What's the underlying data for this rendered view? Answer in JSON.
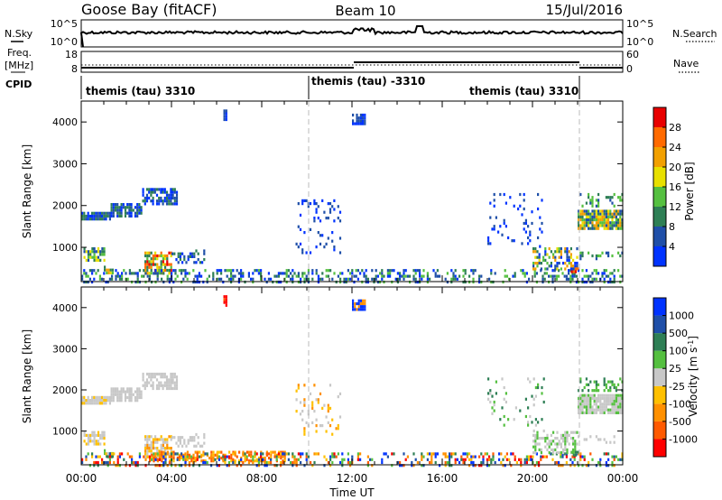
{
  "header": {
    "station": "Goose Bay (fitACF)",
    "beam": "Beam 10",
    "date": "15/Jul/2016"
  },
  "top_panel": {
    "left_label": "N.Sky",
    "right_label": "N.Search",
    "left_ticks": [
      "10^5",
      "10^0"
    ],
    "right_ticks": [
      "10^5",
      "10^0"
    ]
  },
  "freq_panel": {
    "left_label_1": "Freq.",
    "left_label_2": "[MHz]",
    "right_label": "Nave",
    "left_ticks": [
      "18",
      "8"
    ],
    "right_ticks": [
      "60",
      "0"
    ]
  },
  "cpid": {
    "label": "CPID",
    "segments": [
      {
        "text": "themis (tau) 3310",
        "start_hour": 0,
        "end_hour": 10
      },
      {
        "text": "themis (tau) -3310",
        "start_hour": 10,
        "end_hour": 22
      },
      {
        "text": "themis (tau) 3310",
        "start_hour": 22,
        "end_hour": 24
      }
    ]
  },
  "x_axis": {
    "label": "Time UT",
    "tick_labels": [
      "00:00",
      "04:00",
      "08:00",
      "12:00",
      "16:00",
      "20:00",
      "00:00"
    ],
    "range_hours": [
      0,
      24
    ],
    "tick_hours": [
      0,
      4,
      8,
      12,
      16,
      20,
      24
    ]
  },
  "power_panel": {
    "ylabel": "Slant Range [km]",
    "yticks": [
      "1000",
      "2000",
      "3000",
      "4000"
    ],
    "colorbar_label": "Power [dB]",
    "colorbar_ticks": [
      "4",
      "8",
      "12",
      "16",
      "20",
      "24",
      "28"
    ],
    "colors": [
      "#0033ff",
      "#1f4fa8",
      "#2e7f55",
      "#55c040",
      "#e8e000",
      "#f2a000",
      "#ff6a00",
      "#e80000"
    ]
  },
  "velocity_panel": {
    "ylabel": "Slant Range [km]",
    "yticks": [
      "1000",
      "2000",
      "3000",
      "4000"
    ],
    "colorbar_label": "Velocity [m s",
    "colorbar_sup": "-1",
    "colorbar_unit_end": "]",
    "colorbar_ticks": [
      "-1000",
      "-500",
      "-100",
      "-25",
      "25",
      "100",
      "500",
      "1000"
    ],
    "colors": [
      "#ff0000",
      "#ff5a00",
      "#ff9000",
      "#ffc000",
      "#c8c8c8",
      "#55c040",
      "#2e7f55",
      "#1f4fa8",
      "#0033ff"
    ]
  },
  "chart_data": [
    {
      "type": "heatmap",
      "title": "Power",
      "x_range_hours": [
        0,
        24
      ],
      "y_range_km": [
        180,
        4500
      ],
      "regions": [
        {
          "t": [
            0.0,
            1.3
          ],
          "r": [
            1650,
            1850
          ],
          "density": 0.85,
          "cls": [
            0,
            1,
            2
          ]
        },
        {
          "t": [
            1.3,
            2.7
          ],
          "r": [
            1760,
            2060
          ],
          "density": 0.8,
          "cls": [
            0,
            1,
            2
          ]
        },
        {
          "t": [
            2.7,
            4.2
          ],
          "r": [
            2050,
            2420
          ],
          "density": 0.7,
          "cls": [
            0,
            1,
            2
          ]
        },
        {
          "t": [
            0.1,
            1.0
          ],
          "r": [
            700,
            1000
          ],
          "density": 0.6,
          "cls": [
            1,
            2,
            3,
            4
          ]
        },
        {
          "t": [
            1.0,
            1.4
          ],
          "r": [
            380,
            560
          ],
          "density": 0.7,
          "cls": [
            2,
            3,
            4,
            5
          ]
        },
        {
          "t": [
            2.8,
            4.0
          ],
          "r": [
            350,
            900
          ],
          "density": 0.75,
          "cls": [
            2,
            3,
            4,
            5,
            6,
            7
          ]
        },
        {
          "t": [
            4.0,
            5.6
          ],
          "r": [
            640,
            950
          ],
          "density": 0.3,
          "cls": [
            0,
            1,
            2
          ]
        },
        {
          "t": [
            0.0,
            24.0
          ],
          "r": [
            180,
            480
          ],
          "density": 0.35,
          "cls": [
            0,
            1,
            2,
            3
          ]
        },
        {
          "t": [
            9.5,
            11.5
          ],
          "r": [
            900,
            2150
          ],
          "density": 0.12,
          "cls": [
            0,
            1
          ]
        },
        {
          "t": [
            6.3,
            6.45
          ],
          "r": [
            4050,
            4300
          ],
          "density": 0.9,
          "cls": [
            0,
            1
          ]
        },
        {
          "t": [
            12.0,
            12.6
          ],
          "r": [
            3950,
            4200
          ],
          "density": 0.7,
          "cls": [
            0,
            1
          ]
        },
        {
          "t": [
            18.0,
            20.5
          ],
          "r": [
            1000,
            2300
          ],
          "density": 0.08,
          "cls": [
            0,
            1
          ]
        },
        {
          "t": [
            20.0,
            22.0
          ],
          "r": [
            500,
            1000
          ],
          "density": 0.5,
          "cls": [
            0,
            1,
            2,
            3,
            4,
            5
          ]
        },
        {
          "t": [
            21.7,
            22.0
          ],
          "r": [
            400,
            520
          ],
          "density": 0.8,
          "cls": [
            6,
            7
          ]
        },
        {
          "t": [
            22.0,
            24.0
          ],
          "r": [
            1450,
            1900
          ],
          "density": 0.9,
          "cls": [
            1,
            2,
            3,
            4,
            5
          ]
        },
        {
          "t": [
            22.0,
            24.0
          ],
          "r": [
            2000,
            2300
          ],
          "density": 0.3,
          "cls": [
            1,
            2,
            3
          ]
        },
        {
          "t": [
            22.0,
            24.0
          ],
          "r": [
            700,
            900
          ],
          "density": 0.25,
          "cls": [
            1,
            2,
            3
          ]
        }
      ]
    },
    {
      "type": "heatmap",
      "title": "Velocity",
      "x_range_hours": [
        0,
        24
      ],
      "y_range_km": [
        180,
        4500
      ],
      "regions": [
        {
          "t": [
            0.0,
            1.3
          ],
          "r": [
            1650,
            1850
          ],
          "density": 0.85,
          "cls": [
            4,
            4,
            4,
            3
          ]
        },
        {
          "t": [
            1.3,
            2.7
          ],
          "r": [
            1760,
            2060
          ],
          "density": 0.8,
          "cls": [
            4,
            4,
            4
          ]
        },
        {
          "t": [
            2.7,
            4.2
          ],
          "r": [
            2050,
            2420
          ],
          "density": 0.7,
          "cls": [
            4,
            4,
            4
          ]
        },
        {
          "t": [
            0.1,
            1.0
          ],
          "r": [
            700,
            1000
          ],
          "density": 0.6,
          "cls": [
            4,
            4,
            3
          ]
        },
        {
          "t": [
            1.0,
            1.4
          ],
          "r": [
            380,
            560
          ],
          "density": 0.7,
          "cls": [
            5,
            6,
            4
          ]
        },
        {
          "t": [
            2.8,
            4.0
          ],
          "r": [
            350,
            900
          ],
          "density": 0.75,
          "cls": [
            4,
            4,
            3,
            2
          ]
        },
        {
          "t": [
            4.0,
            5.6
          ],
          "r": [
            640,
            950
          ],
          "density": 0.3,
          "cls": [
            4,
            4
          ]
        },
        {
          "t": [
            3.0,
            9.0
          ],
          "r": [
            300,
            520
          ],
          "density": 0.5,
          "cls": [
            1,
            2,
            3
          ]
        },
        {
          "t": [
            0.0,
            24.0
          ],
          "r": [
            180,
            480
          ],
          "density": 0.35,
          "cls": [
            0,
            1,
            2,
            3,
            5,
            6,
            7,
            8
          ]
        },
        {
          "t": [
            9.5,
            11.5
          ],
          "r": [
            900,
            2150
          ],
          "density": 0.12,
          "cls": [
            3,
            4,
            2
          ]
        },
        {
          "t": [
            6.3,
            6.45
          ],
          "r": [
            4050,
            4300
          ],
          "density": 0.9,
          "cls": [
            0,
            1
          ]
        },
        {
          "t": [
            12.0,
            12.6
          ],
          "r": [
            3950,
            4200
          ],
          "density": 0.7,
          "cls": [
            2,
            8
          ]
        },
        {
          "t": [
            18.0,
            20.5
          ],
          "r": [
            1000,
            2300
          ],
          "density": 0.08,
          "cls": [
            4,
            5,
            6
          ]
        },
        {
          "t": [
            20.0,
            22.0
          ],
          "r": [
            500,
            1000
          ],
          "density": 0.5,
          "cls": [
            4,
            4,
            5
          ]
        },
        {
          "t": [
            21.7,
            22.0
          ],
          "r": [
            400,
            520
          ],
          "density": 0.8,
          "cls": [
            5,
            6
          ]
        },
        {
          "t": [
            22.0,
            24.0
          ],
          "r": [
            1450,
            1900
          ],
          "density": 0.9,
          "cls": [
            4,
            4,
            5
          ]
        },
        {
          "t": [
            22.0,
            24.0
          ],
          "r": [
            2000,
            2300
          ],
          "density": 0.3,
          "cls": [
            5,
            6
          ]
        },
        {
          "t": [
            22.0,
            24.0
          ],
          "r": [
            700,
            900
          ],
          "density": 0.25,
          "cls": [
            4,
            6
          ]
        }
      ]
    }
  ]
}
